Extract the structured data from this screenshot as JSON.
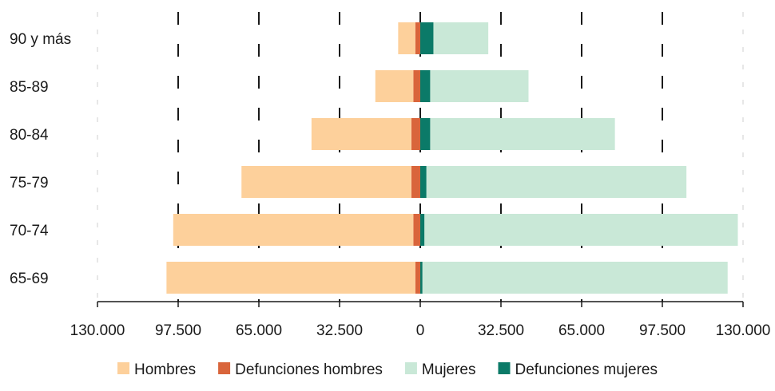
{
  "chart_data": {
    "type": "bar",
    "orientation": "horizontal-diverging",
    "stacked": true,
    "categories": [
      "90 y más",
      "85-89",
      "80-84",
      "75-79",
      "70-74",
      "65-69"
    ],
    "series": [
      {
        "name": "Hombres",
        "side": "left",
        "color": "#fdd09b",
        "values": [
          -6900,
          -15300,
          -40200,
          -68400,
          -96700,
          -100200
        ]
      },
      {
        "name": "Defunciones hombres",
        "side": "left",
        "color": "#d9653b",
        "values": [
          -2000,
          -2800,
          -3600,
          -3600,
          -2800,
          -2000
        ]
      },
      {
        "name": "Mujeres",
        "side": "right",
        "color": "#c9e8d7",
        "values": [
          22100,
          39600,
          74400,
          104700,
          126200,
          122900
        ]
      },
      {
        "name": "Defunciones mujeres",
        "side": "right",
        "color": "#0b7a68",
        "values": [
          5300,
          4000,
          4000,
          2500,
          1700,
          900
        ]
      }
    ],
    "xlim": [
      -130000,
      130000
    ],
    "xticks": [
      -130000,
      -97500,
      -65000,
      -32500,
      0,
      32500,
      65000,
      97500,
      130000
    ],
    "xtick_labels": [
      "130.000",
      "97.500",
      "65.000",
      "32.500",
      "0",
      "32.500",
      "65.000",
      "97.500",
      "130.000"
    ],
    "grid": "vertical-dashed",
    "legend_position": "bottom"
  }
}
